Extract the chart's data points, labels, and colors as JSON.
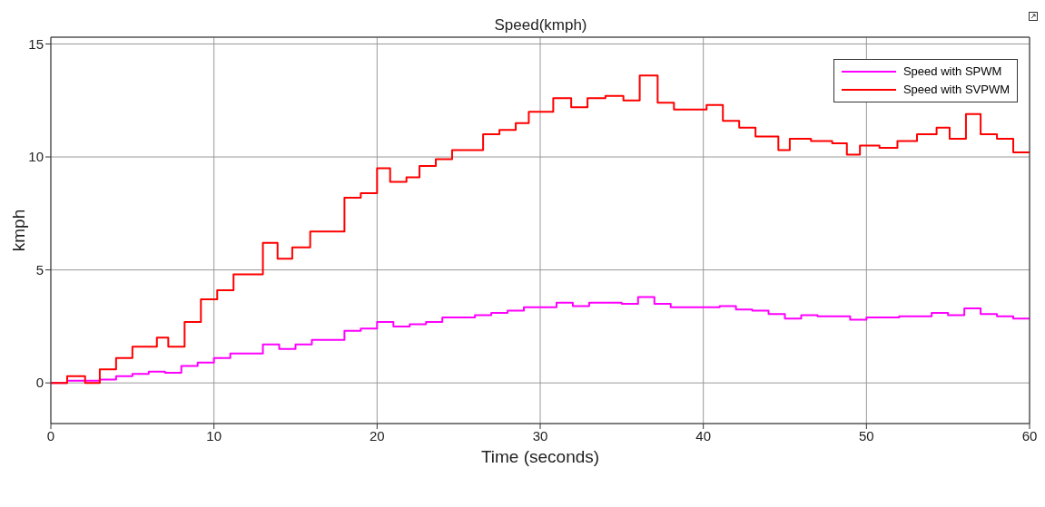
{
  "chart_data": {
    "type": "step",
    "title": "Speed(kmph)",
    "xlabel": "Time (seconds)",
    "ylabel": "kmph",
    "xlim": [
      0,
      60
    ],
    "xticks": [
      0,
      10,
      20,
      30,
      40,
      50,
      60
    ],
    "ylim": [
      -1.8,
      15.3
    ],
    "yticks": [
      0,
      5,
      10,
      15
    ],
    "grid": true,
    "legend": "top right",
    "line_style": "solid",
    "marker": "none",
    "series": [
      {
        "name": "Speed with SPWM",
        "color": "#ff00ff",
        "x": [
          0,
          1,
          3,
          4,
          5,
          6,
          7,
          8,
          9,
          10,
          11,
          13,
          14,
          15,
          16,
          18,
          19,
          20,
          21,
          22,
          23,
          24,
          26,
          27,
          28,
          29,
          31,
          32,
          33,
          35,
          36,
          37,
          38,
          41,
          42,
          43,
          44,
          45,
          46,
          47,
          49,
          50,
          52,
          54,
          55,
          56,
          57,
          58,
          59,
          60
        ],
        "values": [
          0,
          0.1,
          0.15,
          0.3,
          0.4,
          0.5,
          0.45,
          0.75,
          0.9,
          1.1,
          1.3,
          1.7,
          1.5,
          1.7,
          1.9,
          2.3,
          2.4,
          2.7,
          2.5,
          2.6,
          2.7,
          2.9,
          3.0,
          3.1,
          3.2,
          3.35,
          3.55,
          3.4,
          3.55,
          3.5,
          3.8,
          3.5,
          3.35,
          3.4,
          3.25,
          3.2,
          3.05,
          2.85,
          3.0,
          2.95,
          2.8,
          2.9,
          2.95,
          3.1,
          3.0,
          3.3,
          3.05,
          2.95,
          2.85,
          2.85
        ]
      },
      {
        "name": "Speed with SVPWM",
        "color": "#ff0000",
        "x": [
          0,
          1,
          2.1,
          3,
          4,
          5,
          6.5,
          7.2,
          8.2,
          9.2,
          10.2,
          11.2,
          13,
          13.9,
          14.8,
          15.9,
          18,
          19,
          20,
          20.8,
          21.8,
          22.6,
          23.6,
          24.6,
          26.5,
          27.5,
          28.5,
          29.3,
          30.8,
          31.9,
          32.9,
          34,
          35.1,
          36.1,
          37.2,
          38.2,
          40.2,
          41.2,
          42.2,
          43.2,
          44.6,
          45.3,
          46.6,
          47.9,
          48.8,
          49.6,
          50.8,
          51.9,
          53.1,
          54.3,
          55.1,
          56.1,
          57,
          58,
          59,
          60
        ],
        "values": [
          0,
          0.3,
          0,
          0.6,
          1.1,
          1.6,
          2.0,
          1.6,
          2.7,
          3.7,
          4.1,
          4.8,
          6.2,
          5.5,
          6.0,
          6.7,
          8.2,
          8.4,
          9.5,
          8.9,
          9.1,
          9.6,
          9.9,
          10.3,
          11.0,
          11.2,
          11.5,
          12.0,
          12.6,
          12.2,
          12.6,
          12.7,
          12.5,
          13.6,
          12.4,
          12.1,
          12.3,
          11.6,
          11.3,
          10.9,
          10.3,
          10.8,
          10.7,
          10.6,
          10.1,
          10.5,
          10.4,
          10.7,
          11.0,
          11.3,
          10.8,
          11.9,
          11.0,
          10.8,
          10.2,
          10.2
        ]
      }
    ]
  }
}
